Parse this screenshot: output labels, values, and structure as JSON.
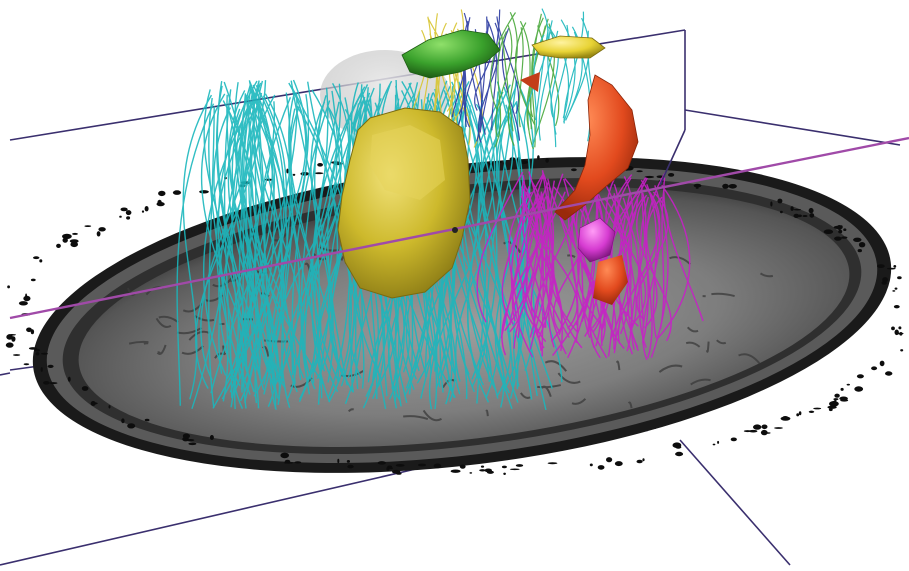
{
  "scene": {
    "kind": "3D tractography visualization over axial MRI slice",
    "background_color": "#ffffff",
    "slice_tone": "grayscale",
    "colors": {
      "bounding_box": "#3a2f6e",
      "crosshair": "#a04aa8",
      "tumor": "#d8c531",
      "green_structure": "#3aa12c",
      "yellow_structure": "#e8d335",
      "red_structure": "#e24a1e",
      "magenta_structure": "#d63bd1",
      "fiber_cyan": "#1bb7bd",
      "fiber_magenta": "#c81fc8",
      "fiber_yellow": "#d8c531",
      "fiber_blue": "#2b3aa0",
      "fiber_green": "#49a83a"
    },
    "objects": [
      "mri-slice",
      "tumor",
      "cyan-fiber-bundle",
      "magenta-fiber-bundle",
      "green-structure",
      "yellow-structure",
      "red-structure",
      "magenta-structure",
      "bounding-box",
      "crosshair-line"
    ]
  }
}
